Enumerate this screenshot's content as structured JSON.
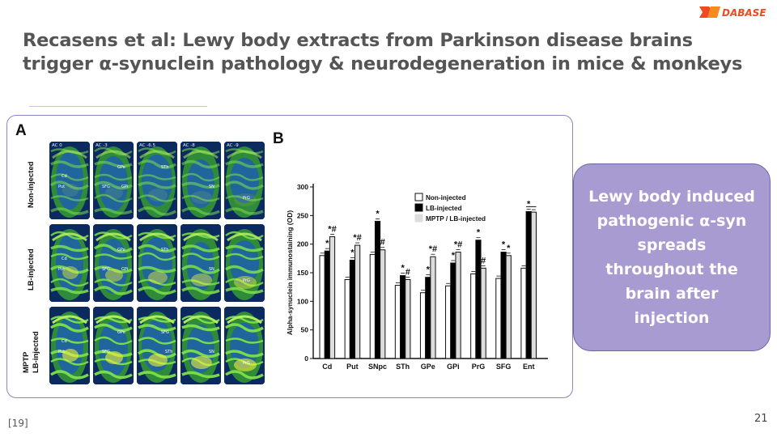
{
  "slide": {
    "logo_text": "DABASE",
    "title_line1": "Recasens et al: Lewy body extracts from Parkinson disease brains",
    "title_line2": "trigger α-synuclein pathology & neurodegeneration in mice & monkeys",
    "reference": "[19]",
    "page_number": "21",
    "callout_text": "Lewy body induced pathogenic α-syn spreads throughout the brain  after injection",
    "colors": {
      "title": "#555558",
      "callout_bg": "#a79bd1",
      "callout_border": "#6a64a8",
      "frame": "#8a86c0"
    }
  },
  "panel_a": {
    "letter": "A",
    "rows": [
      "Non-injected",
      "LB-injected",
      "MPTP LB-injected"
    ],
    "row_label_lines": [
      [
        "Non-injected"
      ],
      [
        "LB-injected"
      ],
      [
        "MPTP",
        "LB-injected"
      ]
    ],
    "columns": [
      "AC 0",
      "AC -3",
      "AC -6.5",
      "AC -8",
      "AC -9"
    ],
    "regions": [
      [
        [
          "Cd",
          "Put"
        ],
        [
          "SFG",
          "GPe",
          "GPi"
        ],
        [
          "STh"
        ],
        [
          "SN"
        ],
        [
          "PrG"
        ]
      ],
      [
        [
          "Cd",
          "Put"
        ],
        [
          "SFG",
          "GPe",
          "GPi"
        ],
        [
          "STh"
        ],
        [
          "SN"
        ],
        [
          "PrG"
        ]
      ],
      [
        [
          "Cd",
          "Put"
        ],
        [
          "SFG",
          "GPe"
        ],
        [
          "SFG",
          "STh"
        ],
        [
          "SN"
        ],
        [
          "PrG"
        ]
      ]
    ]
  },
  "chart_data": {
    "panel_letter": "B",
    "type": "bar",
    "ylabel": "Alpha-synuclein immunostaining (OD)",
    "ylim": [
      0,
      300
    ],
    "yticks": [
      0,
      50,
      100,
      150,
      200,
      250,
      300
    ],
    "categories": [
      "Cd",
      "Put",
      "SNpc",
      "STh",
      "GPe",
      "GPi",
      "PrG",
      "SFG",
      "Ent"
    ],
    "series": [
      {
        "name": "Non-injected",
        "color": "#ffffff",
        "values": [
          180,
          138,
          182,
          128,
          115,
          127,
          148,
          140,
          158
        ]
      },
      {
        "name": "LB-injected",
        "color": "#000000",
        "values": [
          188,
          172,
          240,
          145,
          142,
          167,
          207,
          186,
          257
        ]
      },
      {
        "name": "MPTP / LB-injected",
        "color": "#dcdcdc",
        "values": [
          213,
          198,
          190,
          138,
          178,
          186,
          158,
          180,
          256
        ]
      }
    ],
    "annotations": [
      {
        "category": "Cd",
        "series": 1,
        "text": "*"
      },
      {
        "category": "Cd",
        "series": 2,
        "text": "*#"
      },
      {
        "category": "Put",
        "series": 1,
        "text": "*"
      },
      {
        "category": "Put",
        "series": 2,
        "text": "*#"
      },
      {
        "category": "SNpc",
        "series": 1,
        "text": "*"
      },
      {
        "category": "SNpc",
        "series": 2,
        "text": "#"
      },
      {
        "category": "STh",
        "series": 1,
        "text": "*"
      },
      {
        "category": "STh",
        "series": 2,
        "text": "#"
      },
      {
        "category": "GPe",
        "series": 1,
        "text": "*"
      },
      {
        "category": "GPe",
        "series": 2,
        "text": "*#"
      },
      {
        "category": "GPi",
        "series": 1,
        "text": "*"
      },
      {
        "category": "GPi",
        "series": 2,
        "text": "*#"
      },
      {
        "category": "PrG",
        "series": 1,
        "text": "*"
      },
      {
        "category": "PrG",
        "series": 2,
        "text": "#"
      },
      {
        "category": "SFG",
        "series": 1,
        "text": "*"
      },
      {
        "category": "SFG",
        "series": 2,
        "text": "*"
      },
      {
        "category": "Ent",
        "series": 1,
        "text": "*"
      }
    ],
    "legend_position": "top-right",
    "grid": false
  }
}
